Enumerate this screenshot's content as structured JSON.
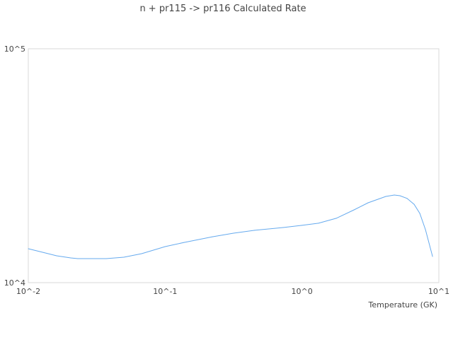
{
  "chart_data": {
    "type": "line",
    "title": "n + pr115 -> pr116 Calculated Rate",
    "xlabel": "Temperature (GK)",
    "ylabel": "",
    "xscale": "log",
    "yscale": "log",
    "xlim": [
      0.01,
      10
    ],
    "ylim": [
      10000,
      100000
    ],
    "xticks": [
      {
        "value": 0.01,
        "label": "10^-2"
      },
      {
        "value": 0.1,
        "label": "10^-1"
      },
      {
        "value": 1,
        "label": "10^0"
      },
      {
        "value": 10,
        "label": "10^1"
      }
    ],
    "yticks": [
      {
        "value": 10000,
        "label": "10^4"
      },
      {
        "value": 100000,
        "label": "10^5"
      }
    ],
    "grid": false,
    "line_color": "#66aaee",
    "x": [
      0.01,
      0.0127,
      0.0161,
      0.0204,
      0.023,
      0.0371,
      0.0499,
      0.0673,
      0.1,
      0.1375,
      0.2213,
      0.316,
      0.452,
      0.728,
      1.0,
      1.32,
      1.78,
      2.4,
      3.04,
      4.1,
      4.73,
      5.2,
      5.86,
      6.6,
      7.26,
      7.98,
      8.99
    ],
    "y": [
      13960,
      13490,
      13030,
      12760,
      12670,
      12670,
      12850,
      13300,
      14260,
      14860,
      15710,
      16270,
      16740,
      17210,
      17580,
      17950,
      18840,
      20470,
      21950,
      23370,
      23700,
      23530,
      22910,
      21620,
      19770,
      16850,
      12940
    ]
  }
}
